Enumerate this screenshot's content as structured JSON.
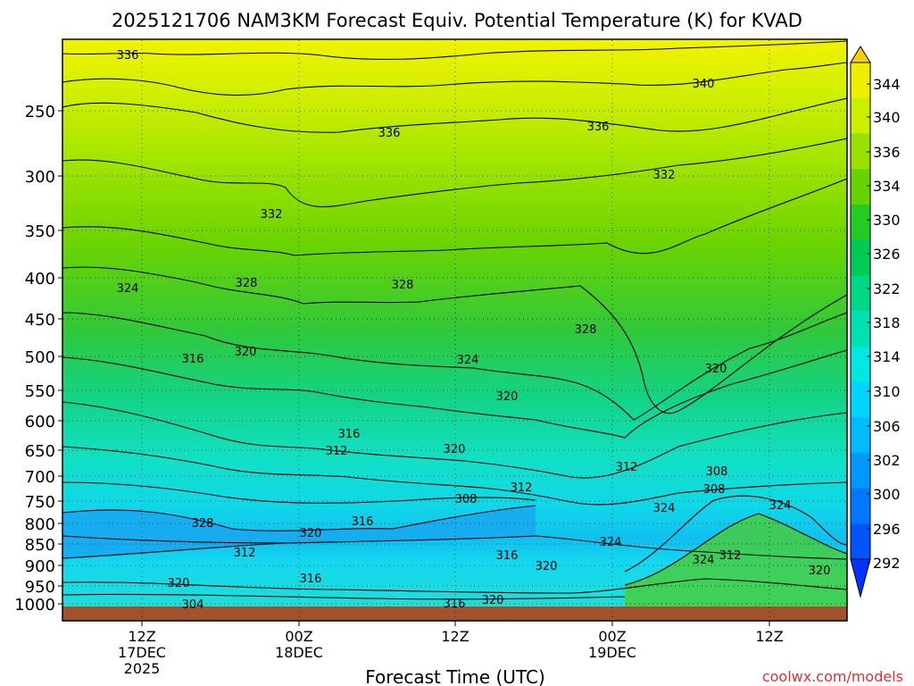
{
  "chart_data": {
    "type": "heatmap",
    "title": "2025121706 NAM3KM Forecast Equiv. Potential Temperature (K) for KVAD",
    "xlabel": "Forecast Time (UTC)",
    "ylabel": "",
    "y_ticks": [
      "250",
      "300",
      "350",
      "400",
      "450",
      "500",
      "550",
      "600",
      "650",
      "700",
      "750",
      "800",
      "850",
      "900",
      "950",
      "1000"
    ],
    "x_ticks": [
      {
        "label": "12Z",
        "sub1": "17DEC",
        "sub2": "2025"
      },
      {
        "label": "00Z",
        "sub1": "18DEC",
        "sub2": ""
      },
      {
        "label": "12Z",
        "sub1": "",
        "sub2": ""
      },
      {
        "label": "00Z",
        "sub1": "19DEC",
        "sub2": ""
      },
      {
        "label": "12Z",
        "sub1": "",
        "sub2": ""
      }
    ],
    "colorbar_levels": [
      292,
      296,
      300,
      302,
      306,
      310,
      314,
      318,
      322,
      326,
      330,
      334,
      336,
      340,
      344
    ],
    "contour_labels": [
      "336",
      "340",
      "336",
      "336",
      "332",
      "332",
      "324",
      "328",
      "328",
      "328",
      "320",
      "316",
      "324",
      "320",
      "320",
      "316",
      "312",
      "320",
      "312",
      "308",
      "324",
      "316",
      "320",
      "308",
      "312",
      "308",
      "312",
      "324",
      "324",
      "316",
      "320",
      "328",
      "324",
      "320",
      "312",
      "316",
      "320",
      "304",
      "316",
      "320"
    ],
    "grid": true,
    "legend": "right"
  },
  "credit": "coolwx.com/models"
}
